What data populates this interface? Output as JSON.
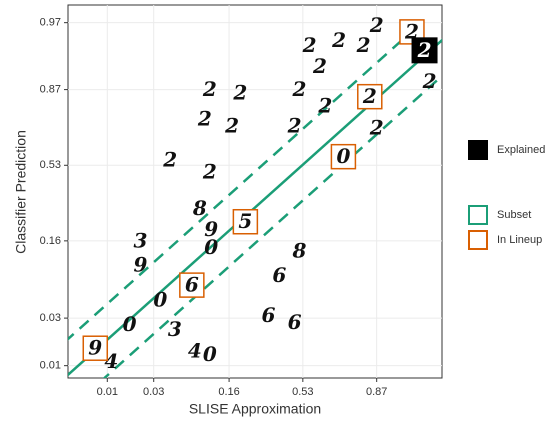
{
  "chart_data": {
    "type": "scatter",
    "x_label": "SLISE Approximation",
    "y_label": "Classifier Prediction",
    "xscale": "logit",
    "yscale": "logit",
    "xlim": [
      0.0039,
      0.97
    ],
    "ylim": [
      0.0075,
      0.98
    ],
    "xticks": [
      0.01,
      0.03,
      0.16,
      0.53,
      0.87
    ],
    "yticks": [
      0.01,
      0.03,
      0.16,
      0.53,
      0.87,
      0.97
    ],
    "grid": true,
    "series": [
      {
        "name": "Explained",
        "color": "#000000",
        "x": [
          0.955
        ],
        "y": [
          0.944
        ],
        "labels": [
          "2"
        ]
      },
      {
        "name": "Subset",
        "color": "#1b9e77",
        "x": [
          0.107,
          0.2,
          0.096,
          0.17,
          0.044,
          0.107,
          0.086,
          0.022,
          0.11,
          0.11,
          0.51,
          0.39,
          0.33,
          0.48,
          0.017,
          0.035,
          0.022,
          0.077,
          0.049,
          0.107,
          0.011,
          0.57,
          0.73,
          0.83,
          0.87,
          0.51,
          0.48,
          0.66,
          0.87,
          0.96,
          0.63
        ],
        "y": [
          0.87,
          0.86,
          0.77,
          0.74,
          0.56,
          0.49,
          0.29,
          0.16,
          0.2,
          0.14,
          0.13,
          0.078,
          0.032,
          0.027,
          0.026,
          0.045,
          0.097,
          0.014,
          0.023,
          0.013,
          0.011,
          0.95,
          0.955,
          0.95,
          0.968,
          0.87,
          0.74,
          0.82,
          0.73,
          0.89,
          0.92
        ],
        "labels": [
          "2",
          "2",
          "2",
          "2",
          "2",
          "2",
          "8",
          "3",
          "9",
          "0",
          "8",
          "6",
          "6",
          "6",
          "0",
          "0",
          "9",
          "4",
          "3",
          "0",
          "4",
          "2",
          "2",
          "2",
          "2",
          "2",
          "2",
          "2",
          "2",
          "2",
          "2"
        ]
      },
      {
        "name": "In Lineup",
        "color": "#d95f02",
        "x": [
          0.0075,
          0.072,
          0.22,
          0.75,
          0.85,
          0.94
        ],
        "y": [
          0.015,
          0.063,
          0.23,
          0.58,
          0.85,
          0.963
        ],
        "labels": [
          "9",
          "6",
          "5",
          "0",
          "2",
          "2"
        ]
      }
    ]
  }
}
